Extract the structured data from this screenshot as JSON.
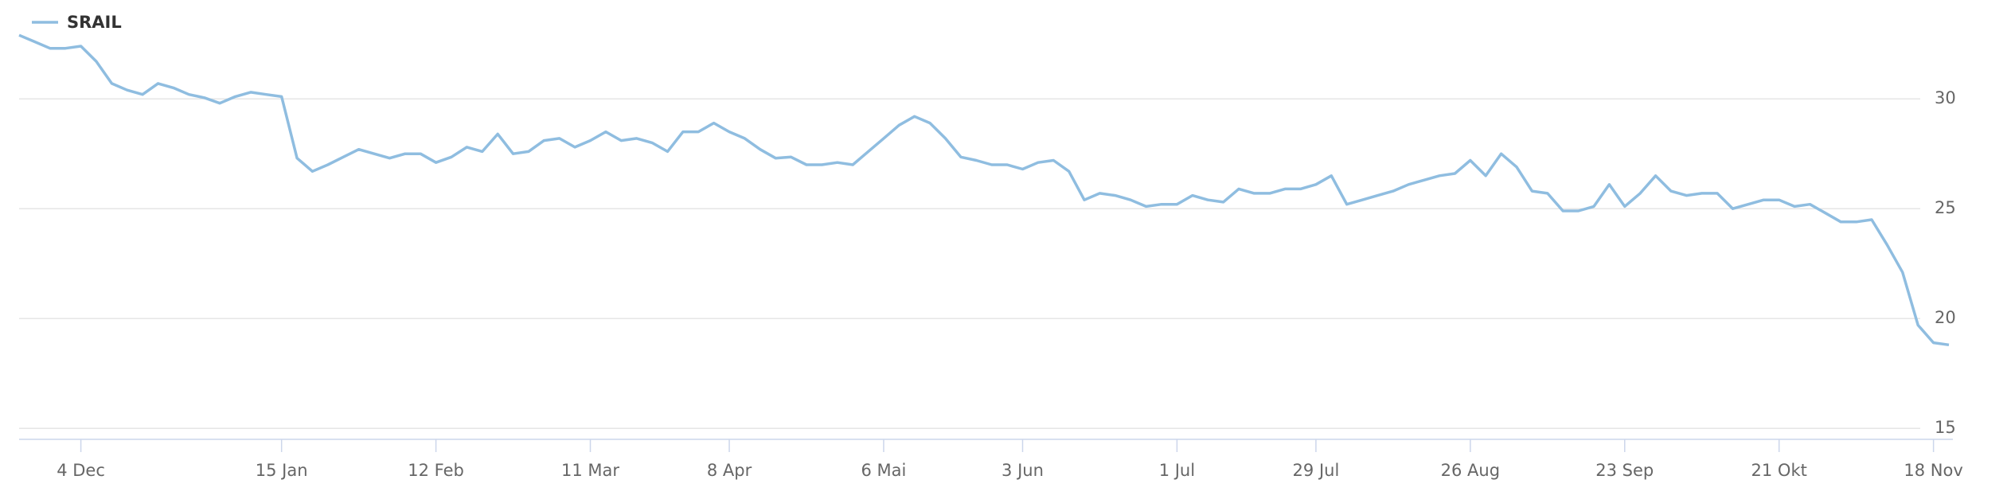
{
  "chart_data": {
    "type": "line",
    "categories": [
      null,
      null,
      null,
      null,
      "4 Dec",
      null,
      null,
      null,
      null,
      null,
      null,
      null,
      null,
      null,
      null,
      null,
      null,
      "15 Jan",
      null,
      null,
      null,
      null,
      null,
      null,
      null,
      null,
      null,
      "12 Feb",
      null,
      null,
      null,
      null,
      null,
      null,
      null,
      null,
      null,
      "11 Mar",
      null,
      null,
      null,
      null,
      null,
      null,
      null,
      null,
      "8 Apr",
      null,
      null,
      null,
      null,
      null,
      null,
      null,
      null,
      null,
      "6 Mai",
      null,
      null,
      null,
      null,
      null,
      null,
      null,
      null,
      "3 Jun",
      null,
      null,
      null,
      null,
      null,
      null,
      null,
      null,
      null,
      "1 Jul",
      null,
      null,
      null,
      null,
      null,
      null,
      null,
      null,
      "29 Jul",
      null,
      null,
      null,
      null,
      null,
      null,
      null,
      null,
      null,
      "26 Aug",
      null,
      null,
      null,
      null,
      null,
      null,
      null,
      null,
      null,
      "23 Sep",
      null,
      null,
      null,
      null,
      null,
      null,
      null,
      null,
      null,
      "21 Okt",
      null,
      null,
      null,
      null,
      null,
      null,
      null,
      null,
      null,
      "18 Nov",
      null
    ],
    "series": [
      {
        "name": "SRAIL",
        "color": "#8fbde0",
        "values": [
          32.9,
          32.6,
          32.3,
          32.3,
          32.4,
          31.7,
          30.7,
          30.4,
          30.2,
          30.7,
          30.5,
          30.2,
          30.05,
          29.8,
          30.1,
          30.3,
          30.2,
          30.1,
          27.3,
          26.7,
          27.0,
          27.35,
          27.7,
          27.5,
          27.3,
          27.5,
          27.5,
          27.1,
          27.35,
          27.8,
          27.6,
          28.4,
          27.5,
          27.6,
          28.1,
          28.2,
          27.8,
          28.1,
          28.5,
          28.1,
          28.2,
          28.0,
          27.6,
          28.5,
          28.5,
          28.9,
          28.5,
          28.2,
          27.7,
          27.3,
          27.35,
          27.0,
          27.0,
          27.1,
          27.0,
          27.6,
          28.2,
          28.8,
          29.2,
          28.9,
          28.2,
          27.35,
          27.2,
          27.0,
          27.0,
          26.8,
          27.1,
          27.2,
          26.7,
          25.4,
          25.7,
          25.6,
          25.4,
          25.1,
          25.2,
          25.2,
          25.6,
          25.4,
          25.3,
          25.9,
          25.7,
          25.7,
          25.9,
          25.9,
          26.1,
          26.5,
          25.2,
          25.4,
          25.6,
          25.8,
          26.1,
          26.3,
          26.5,
          26.6,
          27.2,
          26.5,
          27.5,
          26.9,
          25.8,
          25.7,
          24.9,
          24.9,
          25.1,
          26.1,
          25.1,
          25.7,
          26.5,
          25.8,
          25.6,
          25.7,
          25.7,
          25.0,
          25.2,
          25.4,
          25.4,
          25.1,
          25.2,
          24.8,
          24.4,
          24.4,
          24.5,
          23.35,
          22.1,
          19.7,
          18.9,
          18.8
        ]
      }
    ],
    "ylim": [
      14.5,
      34.5
    ],
    "yticks": [
      15,
      20,
      25,
      30
    ],
    "grid": true,
    "legend": "top-left"
  }
}
